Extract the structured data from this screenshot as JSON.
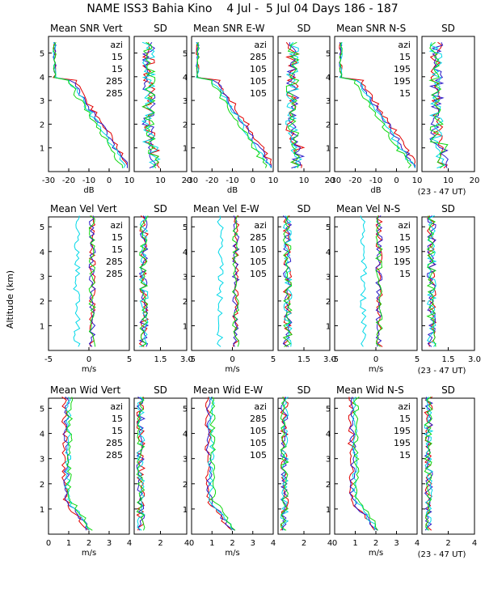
{
  "title": "NAME ISS3 Bahia Kino    4 Jul -  5 Jul 04 Days 186 - 187",
  "y_axis_label": "Altitude (km)",
  "ut_note": "(23 - 47 UT)",
  "colors": {
    "azi": "#000000",
    "c1": "#e00000",
    "c2": "#2a1ac8",
    "c3": "#00d8e8",
    "c4": "#10d810"
  },
  "chart_data": [
    {
      "row": 0,
      "type": "line",
      "group": "vert",
      "mean": {
        "title": "Mean SNR Vert",
        "xlabel": "dB",
        "xlim": [
          -30,
          10
        ],
        "xticks": [
          "-30",
          "-20",
          "-10",
          "0",
          "10"
        ]
      },
      "sd": {
        "title": "SD",
        "xlim": [
          0,
          20
        ],
        "xticks": [
          "10",
          "20"
        ]
      },
      "legend": {
        "header": "azi",
        "entries": [
          {
            "label": "15",
            "color": "#e00000"
          },
          {
            "label": "15",
            "color": "#2a1ac8"
          },
          {
            "label": "285",
            "color": "#00d8e8"
          },
          {
            "label": "285",
            "color": "#10d810"
          }
        ]
      },
      "ylim": [
        0,
        5.7
      ],
      "yticks": [
        1,
        2,
        3,
        4,
        5
      ]
    },
    {
      "row": 0,
      "type": "line",
      "group": "ew",
      "mean": {
        "title": "Mean SNR E-W",
        "xlabel": "dB",
        "xlim": [
          -30,
          10
        ],
        "xticks": [
          "-30",
          "-20",
          "-10",
          "0",
          "10"
        ]
      },
      "sd": {
        "title": "SD",
        "xlim": [
          0,
          20
        ],
        "xticks": [
          "10",
          "20"
        ]
      },
      "legend": {
        "header": "azi",
        "entries": [
          {
            "label": "285",
            "color": "#e00000"
          },
          {
            "label": "105",
            "color": "#2a1ac8"
          },
          {
            "label": "105",
            "color": "#00d8e8"
          },
          {
            "label": "105",
            "color": "#10d810"
          }
        ]
      },
      "ylim": [
        0,
        5.7
      ],
      "yticks": [
        1,
        2,
        3,
        4,
        5
      ]
    },
    {
      "row": 0,
      "type": "line",
      "group": "ns",
      "mean": {
        "title": "Mean SNR N-S",
        "xlabel": "dB",
        "xlim": [
          -30,
          10
        ],
        "xticks": [
          "-30",
          "-20",
          "-10",
          "0",
          "10"
        ]
      },
      "sd": {
        "title": "SD",
        "xlim": [
          0,
          20
        ],
        "xticks": [
          "10",
          "20"
        ]
      },
      "legend": {
        "header": "azi",
        "entries": [
          {
            "label": "15",
            "color": "#e00000"
          },
          {
            "label": "195",
            "color": "#2a1ac8"
          },
          {
            "label": "195",
            "color": "#00d8e8"
          },
          {
            "label": "15",
            "color": "#10d810"
          }
        ]
      },
      "ylim": [
        0,
        5.7
      ],
      "yticks": [
        1,
        2,
        3,
        4,
        5
      ]
    },
    {
      "row": 1,
      "type": "line",
      "group": "vert",
      "mean": {
        "title": "Mean Vel Vert",
        "xlabel": "m/s",
        "xlim": [
          -5,
          5
        ],
        "xticks": [
          "-5",
          "0",
          "5"
        ]
      },
      "sd": {
        "title": "SD",
        "xlim": [
          0,
          3
        ],
        "xticks": [
          "1.5",
          "3.0"
        ]
      },
      "legend": {
        "header": "azi",
        "entries": [
          {
            "label": "15",
            "color": "#e00000"
          },
          {
            "label": "15",
            "color": "#2a1ac8"
          },
          {
            "label": "285",
            "color": "#00d8e8"
          },
          {
            "label": "285",
            "color": "#10d810"
          }
        ]
      },
      "ylim": [
        0,
        5.4
      ],
      "yticks": [
        1,
        2,
        3,
        4,
        5
      ]
    },
    {
      "row": 1,
      "type": "line",
      "group": "ew",
      "mean": {
        "title": "Mean Vel E-W",
        "xlabel": "m/s",
        "xlim": [
          -5,
          5
        ],
        "xticks": [
          "-5",
          "0",
          "5"
        ]
      },
      "sd": {
        "title": "SD",
        "xlim": [
          0,
          3
        ],
        "xticks": [
          "1.5",
          "3.0"
        ]
      },
      "legend": {
        "header": "azi",
        "entries": [
          {
            "label": "285",
            "color": "#e00000"
          },
          {
            "label": "105",
            "color": "#2a1ac8"
          },
          {
            "label": "105",
            "color": "#00d8e8"
          },
          {
            "label": "105",
            "color": "#10d810"
          }
        ]
      },
      "ylim": [
        0,
        5.4
      ],
      "yticks": [
        1,
        2,
        3,
        4,
        5
      ]
    },
    {
      "row": 1,
      "type": "line",
      "group": "ns",
      "mean": {
        "title": "Mean Vel N-S",
        "xlabel": "m/s",
        "xlim": [
          -5,
          5
        ],
        "xticks": [
          "-5",
          "0",
          "5"
        ]
      },
      "sd": {
        "title": "SD",
        "xlim": [
          0,
          3
        ],
        "xticks": [
          "1.5",
          "3.0"
        ]
      },
      "legend": {
        "header": "azi",
        "entries": [
          {
            "label": "15",
            "color": "#e00000"
          },
          {
            "label": "195",
            "color": "#2a1ac8"
          },
          {
            "label": "195",
            "color": "#00d8e8"
          },
          {
            "label": "15",
            "color": "#10d810"
          }
        ]
      },
      "ylim": [
        0,
        5.4
      ],
      "yticks": [
        1,
        2,
        3,
        4,
        5
      ]
    },
    {
      "row": 2,
      "type": "line",
      "group": "vert",
      "mean": {
        "title": "Mean Wid Vert",
        "xlabel": "m/s",
        "xlim": [
          0,
          4
        ],
        "xticks": [
          "0",
          "1",
          "2",
          "3",
          "4"
        ]
      },
      "sd": {
        "title": "SD",
        "xlim": [
          0,
          4
        ],
        "xticks": [
          "2",
          "4"
        ]
      },
      "legend": {
        "header": "azi",
        "entries": [
          {
            "label": "15",
            "color": "#e00000"
          },
          {
            "label": "15",
            "color": "#2a1ac8"
          },
          {
            "label": "285",
            "color": "#00d8e8"
          },
          {
            "label": "285",
            "color": "#10d810"
          }
        ]
      },
      "ylim": [
        0,
        5.4
      ],
      "yticks": [
        1,
        2,
        3,
        4,
        5
      ]
    },
    {
      "row": 2,
      "type": "line",
      "group": "ew",
      "mean": {
        "title": "Mean Wid E-W",
        "xlabel": "m/s",
        "xlim": [
          0,
          4
        ],
        "xticks": [
          "0",
          "1",
          "2",
          "3",
          "4"
        ]
      },
      "sd": {
        "title": "SD",
        "xlim": [
          0,
          4
        ],
        "xticks": [
          "2",
          "4"
        ]
      },
      "legend": {
        "header": "azi",
        "entries": [
          {
            "label": "285",
            "color": "#e00000"
          },
          {
            "label": "105",
            "color": "#2a1ac8"
          },
          {
            "label": "105",
            "color": "#00d8e8"
          },
          {
            "label": "105",
            "color": "#10d810"
          }
        ]
      },
      "ylim": [
        0,
        5.4
      ],
      "yticks": [
        1,
        2,
        3,
        4,
        5
      ]
    },
    {
      "row": 2,
      "type": "line",
      "group": "ns",
      "mean": {
        "title": "Mean Wid N-S",
        "xlabel": "m/s",
        "xlim": [
          0,
          4
        ],
        "xticks": [
          "0",
          "1",
          "2",
          "3",
          "4"
        ]
      },
      "sd": {
        "title": "SD",
        "xlim": [
          0,
          4
        ],
        "xticks": [
          "2",
          "4"
        ]
      },
      "legend": {
        "header": "azi",
        "entries": [
          {
            "label": "15",
            "color": "#e00000"
          },
          {
            "label": "195",
            "color": "#2a1ac8"
          },
          {
            "label": "195",
            "color": "#00d8e8"
          },
          {
            "label": "15",
            "color": "#10d810"
          }
        ]
      },
      "ylim": [
        0,
        5.4
      ],
      "yticks": [
        1,
        2,
        3,
        4,
        5
      ]
    }
  ]
}
